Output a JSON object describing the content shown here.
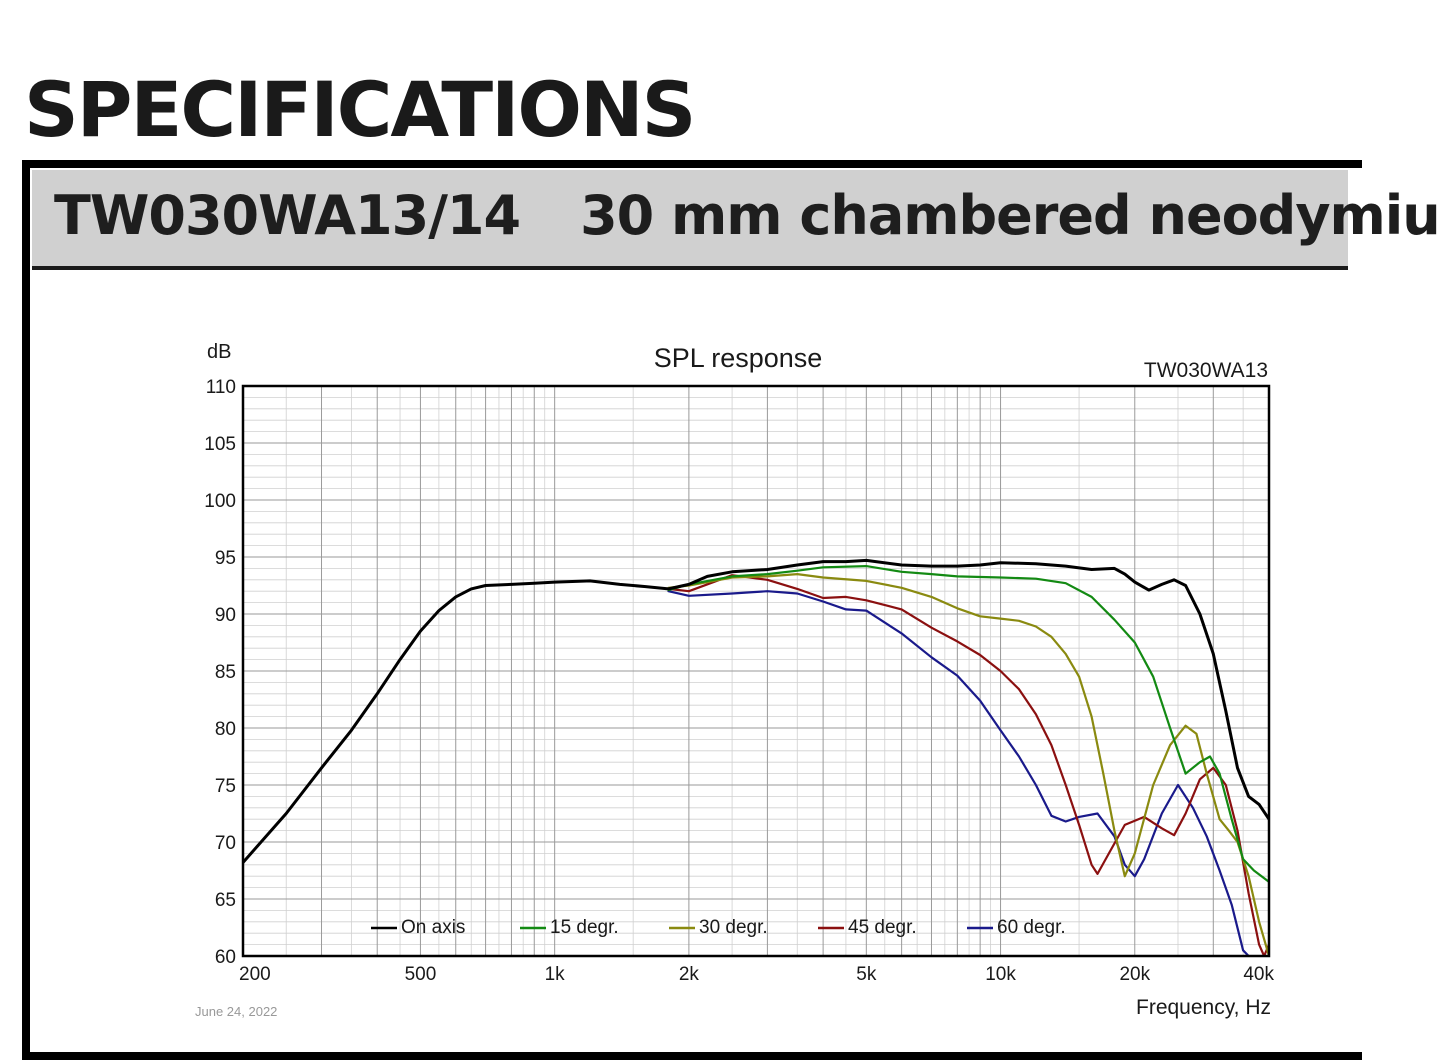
{
  "document": {
    "heading": "SPECIFICATIONS",
    "model": "TW030WA13/14",
    "description": "30 mm chambered neodymiu",
    "date": "June 24, 2022"
  },
  "chart_data": {
    "type": "line",
    "title": "SPL response",
    "model_label": "TW030WA13",
    "ylabel": "dB",
    "xlabel": "Frequency, Hz",
    "x_scale": "log",
    "xlim": [
      200,
      40000
    ],
    "ylim": [
      60,
      110
    ],
    "grid": true,
    "legend_position": "bottom-left",
    "x_ticks": [
      {
        "value": 200,
        "label": "200"
      },
      {
        "value": 500,
        "label": "500"
      },
      {
        "value": 1000,
        "label": "1k"
      },
      {
        "value": 2000,
        "label": "2k"
      },
      {
        "value": 5000,
        "label": "5k"
      },
      {
        "value": 10000,
        "label": "10k"
      },
      {
        "value": 20000,
        "label": "20k"
      },
      {
        "value": 40000,
        "label": "40k"
      }
    ],
    "y_ticks": [
      110,
      105,
      100,
      95,
      90,
      85,
      80,
      75,
      70,
      65,
      60
    ],
    "series": [
      {
        "name": "On axis",
        "color": "#000000",
        "points": [
          [
            200,
            68.2
          ],
          [
            250,
            72.5
          ],
          [
            300,
            76.5
          ],
          [
            350,
            79.8
          ],
          [
            400,
            83
          ],
          [
            450,
            86
          ],
          [
            500,
            88.5
          ],
          [
            550,
            90.3
          ],
          [
            600,
            91.5
          ],
          [
            650,
            92.2
          ],
          [
            700,
            92.5
          ],
          [
            800,
            92.6
          ],
          [
            900,
            92.7
          ],
          [
            1000,
            92.8
          ],
          [
            1200,
            92.9
          ],
          [
            1400,
            92.6
          ],
          [
            1600,
            92.4
          ],
          [
            1800,
            92.2
          ],
          [
            2000,
            92.6
          ],
          [
            2200,
            93.3
          ],
          [
            2500,
            93.7
          ],
          [
            3000,
            93.9
          ],
          [
            3500,
            94.3
          ],
          [
            4000,
            94.6
          ],
          [
            4500,
            94.6
          ],
          [
            5000,
            94.7
          ],
          [
            6000,
            94.3
          ],
          [
            7000,
            94.2
          ],
          [
            8000,
            94.2
          ],
          [
            9000,
            94.3
          ],
          [
            10000,
            94.5
          ],
          [
            12000,
            94.4
          ],
          [
            14000,
            94.2
          ],
          [
            16000,
            93.9
          ],
          [
            18000,
            94
          ],
          [
            19000,
            93.5
          ],
          [
            20000,
            92.8
          ],
          [
            21500,
            92.1
          ],
          [
            23000,
            92.6
          ],
          [
            24500,
            93
          ],
          [
            26000,
            92.5
          ],
          [
            28000,
            90
          ],
          [
            30000,
            86.5
          ],
          [
            32000,
            81.5
          ],
          [
            34000,
            76.5
          ],
          [
            36000,
            74
          ],
          [
            38000,
            73.3
          ],
          [
            40000,
            72
          ]
        ]
      },
      {
        "name": "15 degr.",
        "color": "#138a13",
        "points": [
          [
            1800,
            92.1
          ],
          [
            2000,
            92.6
          ],
          [
            2500,
            93.3
          ],
          [
            3000,
            93.5
          ],
          [
            3500,
            93.8
          ],
          [
            4000,
            94.1
          ],
          [
            5000,
            94.2
          ],
          [
            6000,
            93.7
          ],
          [
            7000,
            93.5
          ],
          [
            8000,
            93.3
          ],
          [
            10000,
            93.2
          ],
          [
            12000,
            93.1
          ],
          [
            14000,
            92.7
          ],
          [
            16000,
            91.5
          ],
          [
            18000,
            89.5
          ],
          [
            20000,
            87.5
          ],
          [
            22000,
            84.5
          ],
          [
            24000,
            80
          ],
          [
            26000,
            76
          ],
          [
            28000,
            77
          ],
          [
            29500,
            77.5
          ],
          [
            31000,
            76
          ],
          [
            33000,
            72
          ],
          [
            35000,
            68.5
          ],
          [
            37000,
            67.5
          ],
          [
            40000,
            66.5
          ]
        ]
      },
      {
        "name": "30 degr.",
        "color": "#8a8a10",
        "points": [
          [
            1800,
            92.3
          ],
          [
            2000,
            92.5
          ],
          [
            2500,
            93.2
          ],
          [
            3000,
            93.3
          ],
          [
            3500,
            93.5
          ],
          [
            4000,
            93.2
          ],
          [
            5000,
            92.9
          ],
          [
            6000,
            92.3
          ],
          [
            7000,
            91.5
          ],
          [
            8000,
            90.5
          ],
          [
            9000,
            89.8
          ],
          [
            10000,
            89.6
          ],
          [
            11000,
            89.4
          ],
          [
            12000,
            88.9
          ],
          [
            13000,
            88
          ],
          [
            14000,
            86.5
          ],
          [
            15000,
            84.5
          ],
          [
            16000,
            81
          ],
          [
            17000,
            76
          ],
          [
            18000,
            71
          ],
          [
            19000,
            67
          ],
          [
            20000,
            69
          ],
          [
            22000,
            75
          ],
          [
            24000,
            78.5
          ],
          [
            26000,
            80.2
          ],
          [
            27500,
            79.5
          ],
          [
            29000,
            76
          ],
          [
            31000,
            72
          ],
          [
            32500,
            71
          ],
          [
            34000,
            70
          ],
          [
            36000,
            67
          ],
          [
            38000,
            63
          ],
          [
            40000,
            60
          ]
        ]
      },
      {
        "name": "45 degr.",
        "color": "#8b1010",
        "points": [
          [
            1800,
            92.2
          ],
          [
            2000,
            92
          ],
          [
            2500,
            93.4
          ],
          [
            3000,
            93
          ],
          [
            3500,
            92.2
          ],
          [
            4000,
            91.4
          ],
          [
            4500,
            91.5
          ],
          [
            5000,
            91.2
          ],
          [
            6000,
            90.4
          ],
          [
            7000,
            88.8
          ],
          [
            8000,
            87.6
          ],
          [
            9000,
            86.4
          ],
          [
            10000,
            85
          ],
          [
            11000,
            83.4
          ],
          [
            12000,
            81.2
          ],
          [
            13000,
            78.5
          ],
          [
            14000,
            75
          ],
          [
            15000,
            71.5
          ],
          [
            16000,
            68
          ],
          [
            16500,
            67.2
          ],
          [
            17500,
            69
          ],
          [
            19000,
            71.5
          ],
          [
            21000,
            72.2
          ],
          [
            23000,
            71.2
          ],
          [
            24500,
            70.6
          ],
          [
            26000,
            72.5
          ],
          [
            28000,
            75.5
          ],
          [
            30000,
            76.5
          ],
          [
            32000,
            75
          ],
          [
            34000,
            71
          ],
          [
            36000,
            65.5
          ],
          [
            38000,
            61
          ],
          [
            39000,
            60
          ],
          [
            40000,
            61
          ]
        ]
      },
      {
        "name": "60 degr.",
        "color": "#1a1a8b",
        "points": [
          [
            1800,
            92
          ],
          [
            2000,
            91.6
          ],
          [
            2500,
            91.8
          ],
          [
            3000,
            92
          ],
          [
            3500,
            91.8
          ],
          [
            4000,
            91.1
          ],
          [
            4500,
            90.4
          ],
          [
            5000,
            90.3
          ],
          [
            6000,
            88.3
          ],
          [
            7000,
            86.2
          ],
          [
            8000,
            84.6
          ],
          [
            9000,
            82.4
          ],
          [
            10000,
            79.8
          ],
          [
            11000,
            77.5
          ],
          [
            12000,
            75
          ],
          [
            13000,
            72.3
          ],
          [
            14000,
            71.8
          ],
          [
            15000,
            72.2
          ],
          [
            16500,
            72.5
          ],
          [
            18000,
            70.5
          ],
          [
            19000,
            68
          ],
          [
            20000,
            67
          ],
          [
            21000,
            68.5
          ],
          [
            23000,
            72.5
          ],
          [
            25000,
            75
          ],
          [
            27000,
            73
          ],
          [
            29000,
            70.5
          ],
          [
            31000,
            67.5
          ],
          [
            33000,
            64.5
          ],
          [
            35000,
            60.5
          ],
          [
            36000,
            60
          ]
        ]
      }
    ]
  }
}
